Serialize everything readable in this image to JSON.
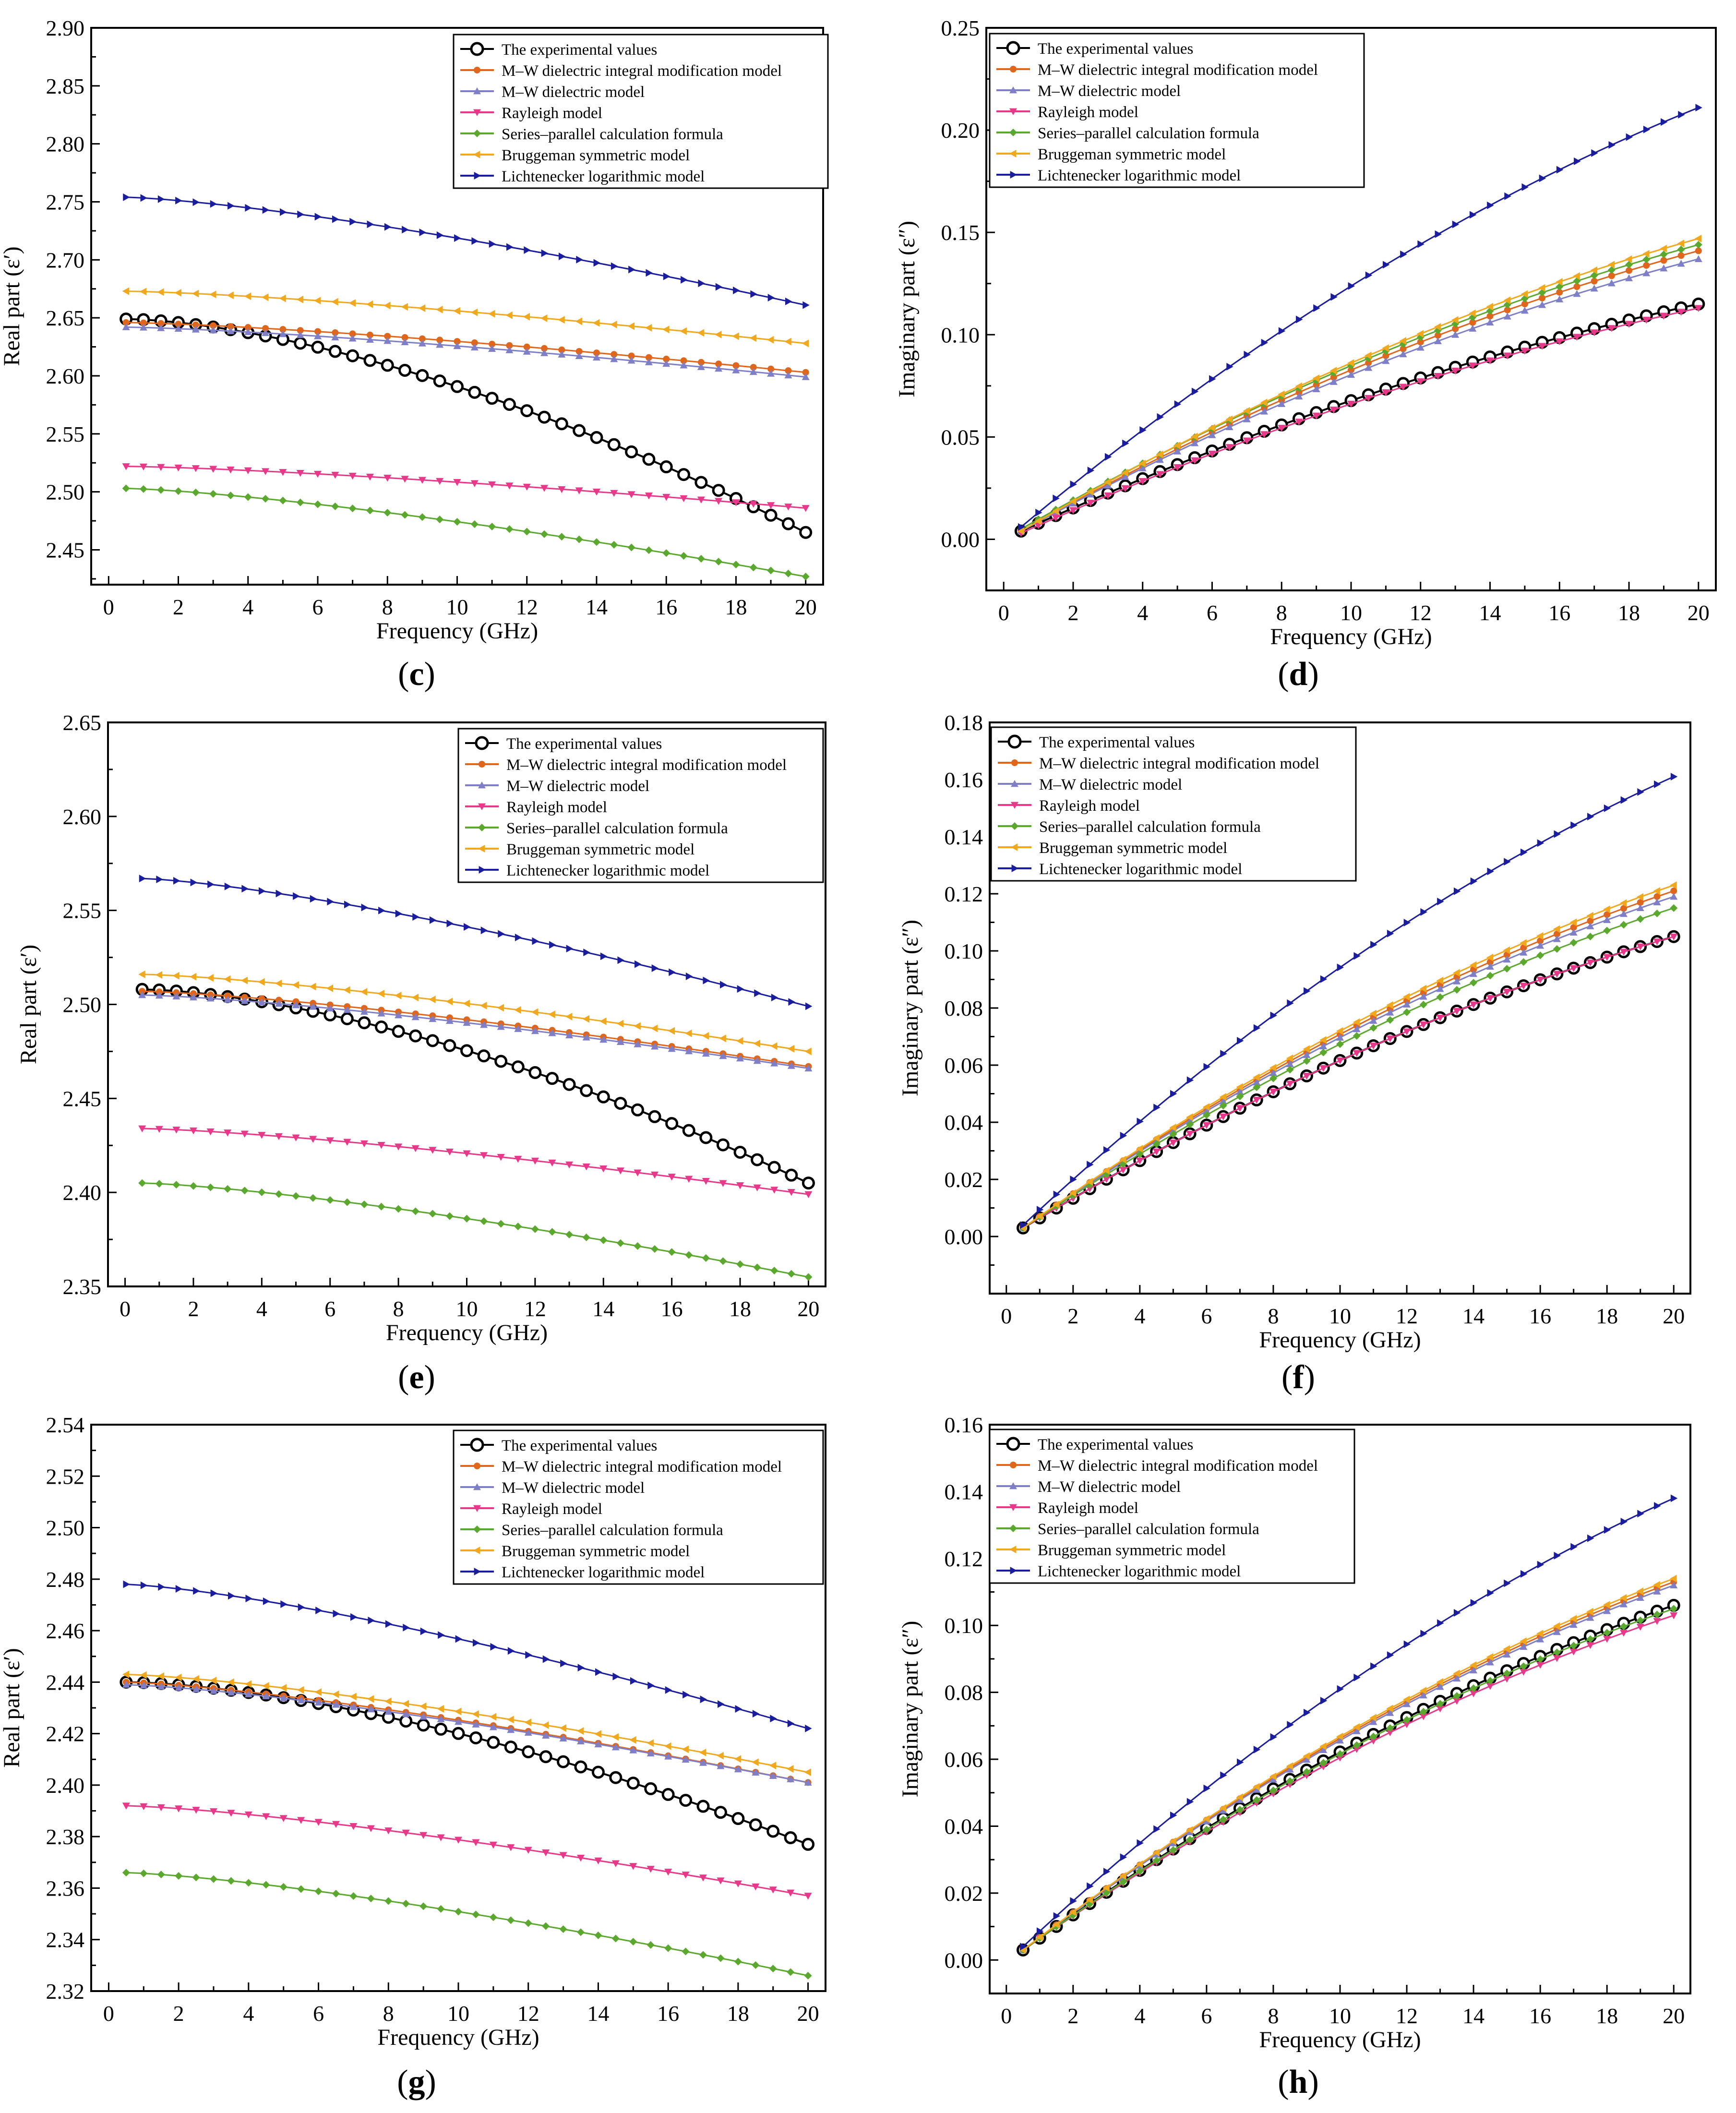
{
  "legend_labels": [
    "The experimental values",
    "M–W dielectric integral modification model",
    "M–W dielectric model",
    "Rayleigh model",
    "Series–parallel calculation formula",
    "Bruggeman symmetric model",
    "Lichtenecker logarithmic model"
  ],
  "series_colors": [
    "#000000",
    "#E0661C",
    "#7F7FC8",
    "#E8388A",
    "#5BA82E",
    "#F0A91E",
    "#1A1E9E"
  ],
  "series_markers": [
    "circle",
    "dot",
    "triangle-up",
    "triangle-down",
    "diamond",
    "triangle-left",
    "triangle-right"
  ],
  "chart_data": [
    {
      "type": "line",
      "panel": "c",
      "xlabel": "Frequency (GHz)",
      "ylabel": "Real part (ε′)",
      "xlim": [
        -0.5,
        20.5
      ],
      "ylim": [
        2.42,
        2.9
      ],
      "xticks": [
        "0",
        "2",
        "4",
        "6",
        "8",
        "10",
        "12",
        "14",
        "16",
        "18",
        "20"
      ],
      "yticks": [
        "2.45",
        "2.50",
        "2.55",
        "2.60",
        "2.65",
        "2.70",
        "2.75",
        "2.80",
        "2.85",
        "2.90"
      ],
      "curve": "real",
      "series": [
        {
          "name": "The experimental values",
          "start": 2.649,
          "end": 2.465
        },
        {
          "name": "M–W dielectric integral modification model",
          "start": 2.646,
          "end": 2.603
        },
        {
          "name": "M–W dielectric model",
          "start": 2.642,
          "end": 2.599
        },
        {
          "name": "Rayleigh model",
          "start": 2.522,
          "end": 2.486
        },
        {
          "name": "Series–parallel calculation formula",
          "start": 2.503,
          "end": 2.427
        },
        {
          "name": "Bruggeman symmetric model",
          "start": 2.673,
          "end": 2.628
        },
        {
          "name": "Lichtenecker logarithmic model",
          "start": 2.754,
          "end": 2.661
        }
      ]
    },
    {
      "type": "line",
      "panel": "d",
      "xlabel": "Frequency (GHz)",
      "ylabel": "Imaginary part (ε″)",
      "xlim": [
        -0.5,
        20.5
      ],
      "ylim": [
        -0.025,
        0.25
      ],
      "xticks": [
        "0",
        "2",
        "4",
        "6",
        "8",
        "10",
        "12",
        "14",
        "16",
        "18",
        "20"
      ],
      "yticks": [
        "0.00",
        "0.05",
        "0.10",
        "0.15",
        "0.20",
        "0.25"
      ],
      "curve": "imag",
      "series": [
        {
          "name": "The experimental values",
          "start": 0.004,
          "end": 0.115
        },
        {
          "name": "M–W dielectric integral modification model",
          "start": 0.004,
          "end": 0.141
        },
        {
          "name": "M–W dielectric model",
          "start": 0.004,
          "end": 0.137
        },
        {
          "name": "Rayleigh model",
          "start": 0.003,
          "end": 0.113
        },
        {
          "name": "Series–parallel calculation formula",
          "start": 0.005,
          "end": 0.144
        },
        {
          "name": "Bruggeman symmetric model",
          "start": 0.004,
          "end": 0.147
        },
        {
          "name": "Lichtenecker logarithmic model",
          "start": 0.006,
          "end": 0.211
        }
      ]
    },
    {
      "type": "line",
      "panel": "e",
      "xlabel": "Frequency (GHz)",
      "ylabel": "Real  part (ε′)",
      "xlim": [
        -0.5,
        20.5
      ],
      "ylim": [
        2.35,
        2.65
      ],
      "xticks": [
        "0",
        "2",
        "4",
        "6",
        "8",
        "10",
        "12",
        "14",
        "16",
        "18",
        "20"
      ],
      "yticks": [
        "2.35",
        "2.40",
        "2.45",
        "2.50",
        "2.55",
        "2.60",
        "2.65"
      ],
      "curve": "real",
      "series": [
        {
          "name": "The experimental values",
          "start": 2.508,
          "end": 2.405
        },
        {
          "name": "M–W dielectric integral modification model",
          "start": 2.507,
          "end": 2.467
        },
        {
          "name": "M–W dielectric model",
          "start": 2.505,
          "end": 2.466
        },
        {
          "name": "Rayleigh model",
          "start": 2.434,
          "end": 2.399
        },
        {
          "name": "Series–parallel calculation formula",
          "start": 2.405,
          "end": 2.355
        },
        {
          "name": "Bruggeman symmetric model",
          "start": 2.516,
          "end": 2.475
        },
        {
          "name": "Lichtenecker logarithmic model",
          "start": 2.567,
          "end": 2.499
        }
      ]
    },
    {
      "type": "line",
      "panel": "f",
      "xlabel": "Frequency (GHz)",
      "ylabel": "Imaginary part (ε″)",
      "xlim": [
        -0.5,
        20.5
      ],
      "ylim": [
        -0.02,
        0.18
      ],
      "xticks": [
        "0",
        "2",
        "4",
        "6",
        "8",
        "10",
        "12",
        "14",
        "16",
        "18",
        "20"
      ],
      "yticks": [
        "0.00",
        "0.02",
        "0.04",
        "0.06",
        "0.08",
        "0.10",
        "0.12",
        "0.14",
        "0.16",
        "0.18"
      ],
      "curve": "imag",
      "series": [
        {
          "name": "The experimental values",
          "start": 0.003,
          "end": 0.105
        },
        {
          "name": "M–W dielectric integral modification model",
          "start": 0.003,
          "end": 0.121
        },
        {
          "name": "M–W dielectric model",
          "start": 0.003,
          "end": 0.119
        },
        {
          "name": "Rayleigh model",
          "start": 0.003,
          "end": 0.105
        },
        {
          "name": "Series–parallel calculation formula",
          "start": 0.003,
          "end": 0.115
        },
        {
          "name": "Bruggeman symmetric model",
          "start": 0.003,
          "end": 0.123
        },
        {
          "name": "Lichtenecker logarithmic model",
          "start": 0.004,
          "end": 0.161
        }
      ]
    },
    {
      "type": "line",
      "panel": "g",
      "xlabel": "Frequency (GHz)",
      "ylabel": "Real part (ε′)",
      "xlim": [
        -0.5,
        20.5
      ],
      "ylim": [
        2.32,
        2.54
      ],
      "xticks": [
        "0",
        "2",
        "4",
        "6",
        "8",
        "10",
        "12",
        "14",
        "16",
        "18",
        "20"
      ],
      "yticks": [
        "2.32",
        "2.34",
        "2.36",
        "2.38",
        "2.40",
        "2.42",
        "2.44",
        "2.46",
        "2.48",
        "2.50",
        "2.52",
        "2.54"
      ],
      "curve": "real",
      "series": [
        {
          "name": "The experimental values",
          "start": 2.44,
          "end": 2.377
        },
        {
          "name": "M–W dielectric integral modification model",
          "start": 2.44,
          "end": 2.401
        },
        {
          "name": "M–W dielectric model",
          "start": 2.439,
          "end": 2.401
        },
        {
          "name": "Rayleigh model",
          "start": 2.392,
          "end": 2.357
        },
        {
          "name": "Series–parallel calculation formula",
          "start": 2.366,
          "end": 2.326
        },
        {
          "name": "Bruggeman symmetric model",
          "start": 2.443,
          "end": 2.405
        },
        {
          "name": "Lichtenecker logarithmic model",
          "start": 2.478,
          "end": 2.422
        }
      ]
    },
    {
      "type": "line",
      "panel": "h",
      "xlabel": "Frequency (GHz)",
      "ylabel": "Imaginary part (ε″)",
      "xlim": [
        -0.5,
        20.5
      ],
      "ylim": [
        -0.01,
        0.16
      ],
      "xticks": [
        "0",
        "2",
        "4",
        "6",
        "8",
        "10",
        "12",
        "14",
        "16",
        "18",
        "20"
      ],
      "yticks": [
        "0.00",
        "0.02",
        "0.04",
        "0.06",
        "0.08",
        "0.10",
        "0.12",
        "0.14",
        "0.16"
      ],
      "curve": "imag",
      "series": [
        {
          "name": "The experimental values",
          "start": 0.003,
          "end": 0.106
        },
        {
          "name": "M–W dielectric integral modification model",
          "start": 0.003,
          "end": 0.113
        },
        {
          "name": "M–W dielectric model",
          "start": 0.003,
          "end": 0.112
        },
        {
          "name": "Rayleigh model",
          "start": 0.003,
          "end": 0.103
        },
        {
          "name": "Series–parallel calculation formula",
          "start": 0.003,
          "end": 0.105
        },
        {
          "name": "Bruggeman symmetric model",
          "start": 0.003,
          "end": 0.114
        },
        {
          "name": "Lichtenecker logarithmic model",
          "start": 0.004,
          "end": 0.138
        }
      ]
    }
  ],
  "panel_labels": [
    "c",
    "d",
    "e",
    "f",
    "g",
    "h"
  ]
}
